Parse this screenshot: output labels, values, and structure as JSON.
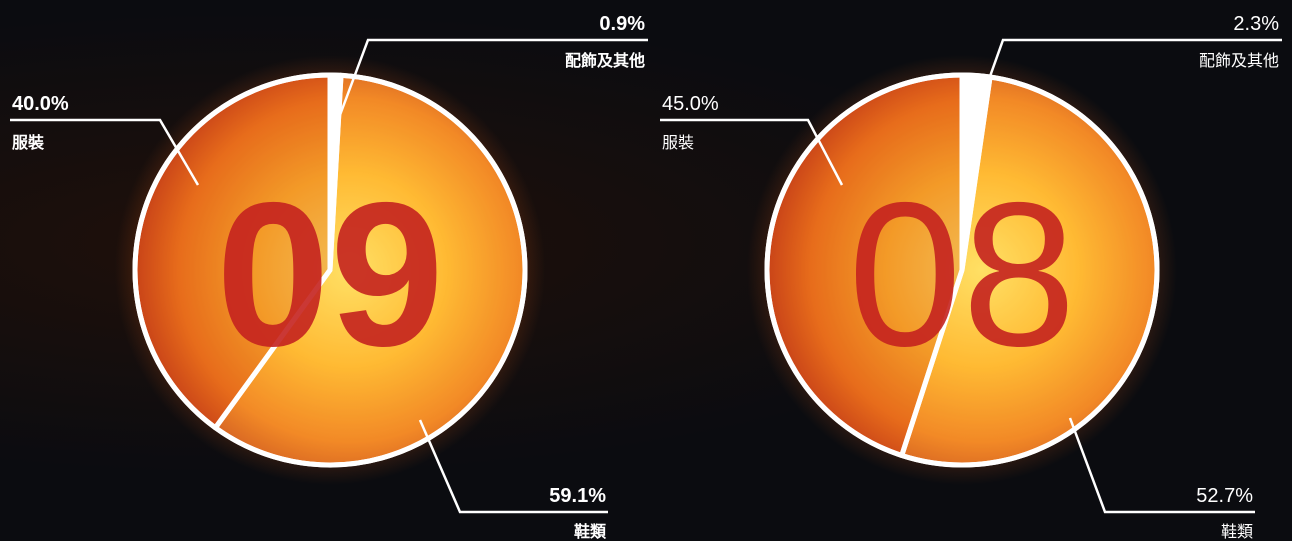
{
  "colors": {
    "background": "#0b0c10",
    "sun_outer": "#e0531c",
    "sun_inner": "#ffcf45",
    "number": "#c4221f",
    "rim": "#ffffff"
  },
  "chart_data": [
    {
      "type": "pie",
      "big_number": "09",
      "label_weight": "bold",
      "slices": [
        {
          "name": "配飾及其他",
          "value": 0.9,
          "value_label": "0.9%"
        },
        {
          "name": "鞋類",
          "value": 59.1,
          "value_label": "59.1%"
        },
        {
          "name": "服裝",
          "value": 40.0,
          "value_label": "40.0%"
        }
      ]
    },
    {
      "type": "pie",
      "big_number": "08",
      "label_weight": "normal",
      "slices": [
        {
          "name": "配飾及其他",
          "value": 2.3,
          "value_label": "2.3%"
        },
        {
          "name": "鞋類",
          "value": 52.7,
          "value_label": "52.7%"
        },
        {
          "name": "服裝",
          "value": 45.0,
          "value_label": "45.0%"
        }
      ]
    }
  ]
}
